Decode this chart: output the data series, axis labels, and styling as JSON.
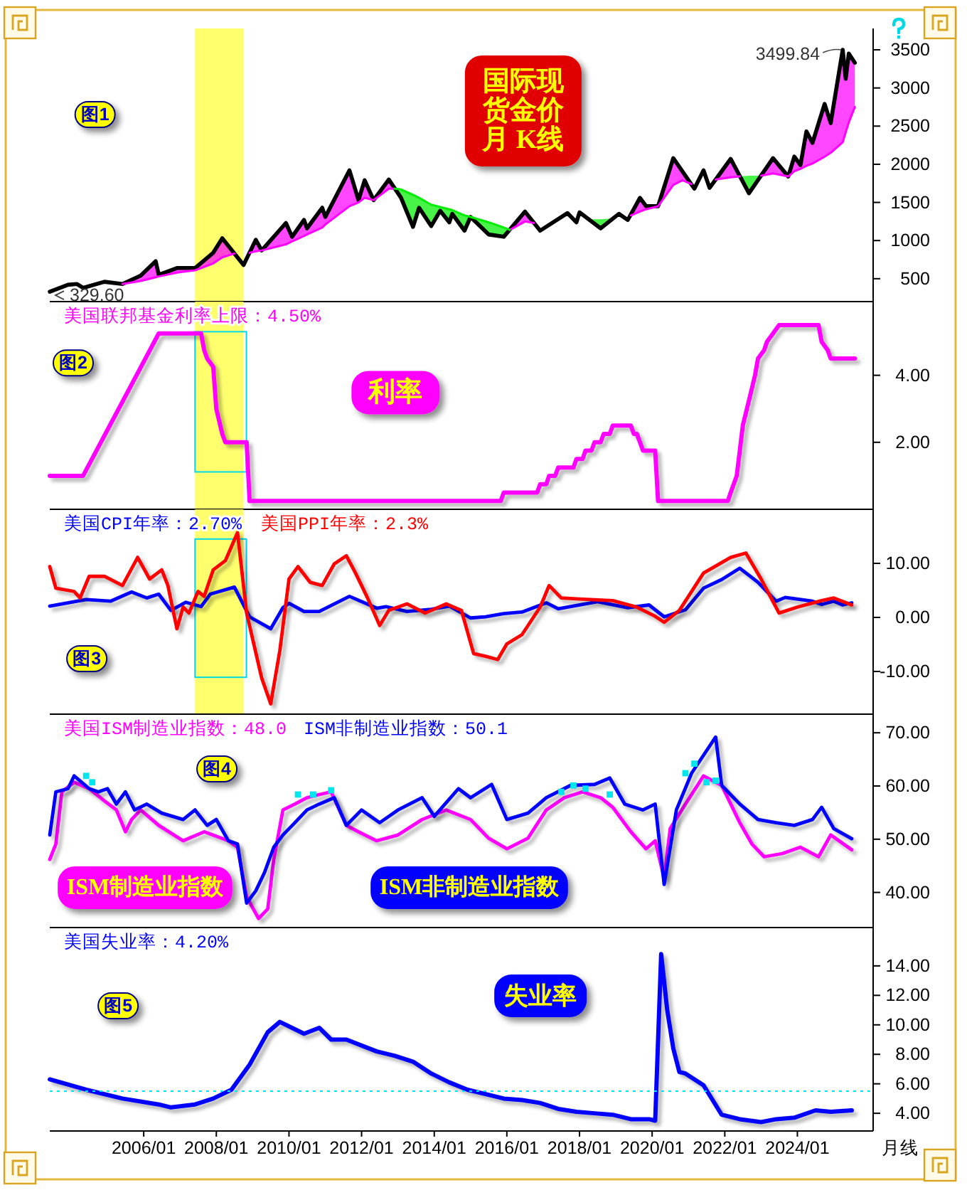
{
  "chart_data": [
    {
      "type": "line",
      "title": "国际现货金价月 K线",
      "annotations": [
        "图1",
        {
          "text": "3499.84",
          "x": "2025-04",
          "y": 3499.84
        },
        {
          "text": "329.60",
          "x": "2003-06",
          "y": 329.6
        }
      ],
      "xlim": [
        "2003-06",
        "2026-02"
      ],
      "ylim": [
        200,
        3780
      ],
      "yticks": [
        500,
        1000,
        1500,
        2000,
        2500,
        3000,
        3500
      ],
      "tick_labels": "y",
      "bands": [
        {
          "axis": "x",
          "from": "2007-06",
          "to": "2008-10",
          "color": "#ffff55"
        }
      ],
      "series": [
        {
          "color": "#000000",
          "x": [
            "2003-06",
            "2003-12",
            "2004-03",
            "2004-05",
            "2004-12",
            "2005-06",
            "2005-12",
            "2006-05",
            "2006-06",
            "2006-12",
            "2007-06",
            "2007-12",
            "2008-03",
            "2008-10",
            "2009-02",
            "2009-04",
            "2009-12",
            "2010-02",
            "2010-06",
            "2010-07",
            "2010-12",
            "2011-01",
            "2011-09",
            "2011-12",
            "2012-02",
            "2012-05",
            "2012-10",
            "2013-02",
            "2013-06",
            "2013-08",
            "2013-12",
            "2014-03",
            "2014-06",
            "2014-07",
            "2014-11",
            "2015-01",
            "2015-07",
            "2015-12",
            "2016-07",
            "2016-12",
            "2017-09",
            "2017-12",
            "2018-01",
            "2018-08",
            "2019-02",
            "2019-05",
            "2019-09",
            "2019-11",
            "2020-03",
            "2020-08",
            "2021-03",
            "2021-06",
            "2021-08",
            "2022-03",
            "2022-09",
            "2023-05",
            "2023-10",
            "2023-12",
            "2024-02",
            "2024-04",
            "2024-06",
            "2024-10",
            "2024-12",
            "2025-04",
            "2025-05",
            "2025-06",
            "2025-08"
          ],
          "values": [
            329.6,
            420,
            430,
            380,
            460,
            430,
            540,
            730,
            550,
            640,
            640,
            840,
            1030,
            680,
            1010,
            870,
            1230,
            1050,
            1270,
            1160,
            1430,
            1310,
            1920,
            1530,
            1790,
            1530,
            1800,
            1560,
            1180,
            1430,
            1190,
            1390,
            1240,
            1350,
            1130,
            1310,
            1080,
            1050,
            1380,
            1130,
            1360,
            1240,
            1370,
            1160,
            1350,
            1270,
            1560,
            1450,
            1450,
            2080,
            1680,
            1920,
            1690,
            2070,
            1620,
            2080,
            1840,
            2100,
            1990,
            2430,
            2280,
            2790,
            2540,
            3499.84,
            3120,
            3450,
            3330
          ]
        },
        {
          "color": "#ff00ff",
          "x": [
            "2005-06",
            "2005-12",
            "2006-05",
            "2006-06",
            "2006-12",
            "2007-06",
            "2007-12",
            "2008-03",
            "2008-07",
            "2008-09",
            "2008-12",
            "2009-02",
            "2009-04",
            "2009-12",
            "2010-02",
            "2010-06",
            "2010-07",
            "2010-12",
            "2011-01",
            "2011-09",
            "2011-12",
            "2012-02",
            "2012-05",
            "2012-10",
            "2012-12",
            "2014-06",
            "2016-02",
            "2016-07",
            "2016-10",
            "2017-12",
            "2019-06",
            "2019-09",
            "2019-11",
            "2020-03",
            "2020-08",
            "2020-11",
            "2021-02",
            "2021-06",
            "2021-10",
            "2022-03",
            "2022-06",
            "2022-09",
            "2023-01",
            "2023-05",
            "2023-10",
            "2023-12",
            "2024-02",
            "2024-04",
            "2024-06",
            "2024-10",
            "2024-12",
            "2025-04",
            "2025-05",
            "2025-06",
            "2025-08"
          ],
          "values": [
            430,
            470,
            520,
            530,
            580,
            610,
            700,
            780,
            830,
            null,
            840,
            860,
            870,
            950,
            990,
            1060,
            1080,
            1170,
            1210,
            1450,
            1500,
            1560,
            1530,
            1680,
            1680,
            null,
            1140,
            1250,
            1230,
            null,
            1330,
            1380,
            1410,
            1450,
            1730,
            1790,
            1740,
            null,
            1800,
            1830,
            1840,
            null,
            1850,
            1880,
            1840,
            1910,
            1940,
            1980,
            2010,
            2100,
            2150,
            2290,
            2420,
            2550,
            2750
          ],
          "lower": [
            430,
            470,
            520,
            530,
            580,
            610,
            700,
            780,
            830,
            null,
            840,
            860,
            870,
            950,
            990,
            1060,
            1080,
            1170,
            1210,
            1450,
            1500,
            1560,
            1530,
            1680,
            1680,
            null,
            1140,
            1250,
            1230,
            null,
            1330,
            1380,
            1410,
            1450,
            1730,
            1790,
            1740,
            null,
            1800,
            1830,
            1840,
            null,
            1850,
            1880,
            1840,
            1910,
            1940,
            1980,
            2010,
            2100,
            2150,
            2290,
            2420,
            2550,
            2750
          ],
          "upper": [
            430,
            540,
            730,
            550,
            640,
            640,
            840,
            1030,
            830,
            null,
            840,
            1010,
            870,
            1230,
            1050,
            1270,
            1160,
            1430,
            1310,
            1920,
            1530,
            1790,
            1530,
            1800,
            1680,
            null,
            1140,
            1380,
            1230,
            null,
            1340,
            1560,
            1450,
            1450,
            2080,
            1910,
            1740,
            null,
            1800,
            2070,
            1840,
            null,
            1850,
            2080,
            1840,
            2100,
            1990,
            2430,
            2280,
            2790,
            2540,
            3499.84,
            3120,
            3450,
            3330
          ]
        },
        {
          "color": "#00ee00",
          "x": [
            "2012-12",
            "2013-02",
            "2013-06",
            "2013-08",
            "2013-12",
            "2014-03",
            "2014-06",
            "2014-07",
            "2014-11",
            "2015-01",
            "2015-07",
            "2015-12",
            "2016-02",
            "2017-01",
            "2018-04",
            "2018-08",
            "2018-12",
            "2020-01",
            "2022-06",
            "2022-09",
            "2023-01"
          ],
          "values": [
            1680,
            1670,
            1600,
            1560,
            1470,
            1440,
            1410,
            1400,
            1330,
            1310,
            1240,
            1170,
            1140,
            null,
            null,
            null,
            null,
            null,
            null,
            null,
            null
          ],
          "lower": [
            1680,
            1560,
            1180,
            1430,
            1190,
            1390,
            1240,
            1350,
            1130,
            1310,
            1080,
            1050,
            1140,
            null,
            1280,
            1160,
            1290,
            null,
            1840,
            1620,
            1850
          ],
          "upper": [
            1680,
            1670,
            1600,
            1560,
            1470,
            1440,
            1410,
            1400,
            1330,
            1310,
            1240,
            1170,
            1140,
            null,
            1280,
            1280,
            1290,
            null,
            1840,
            1850,
            1850
          ]
        }
      ]
    },
    {
      "type": "line",
      "title": "利率",
      "annotations": [
        "图2"
      ],
      "legend": "top left",
      "xlim": [
        "2003-06",
        "2026-02"
      ],
      "ylim": [
        0,
        6.2
      ],
      "yticks": [
        {
          "value": 2,
          "label": "2.00"
        },
        {
          "value": 4,
          "label": "4.00"
        }
      ],
      "tick_labels": "y",
      "bands": [
        {
          "axis": "x",
          "from": "2007-06",
          "to": "2008-10",
          "color": "#ffff55"
        }
      ],
      "series": [
        {
          "name": "美国联邦基金利率上限：4.50%",
          "color": "#ff00ff",
          "x": [
            "2003-06",
            "2004-05",
            "2006-06",
            "2007-08",
            "2007-09",
            "2007-10",
            "2007-12",
            "2008-01",
            "2008-03",
            "2008-04",
            "2008-11",
            "2008-12",
            "2015-11",
            "2015-12",
            "2016-11",
            "2016-12",
            "2017-02",
            "2017-03",
            "2017-05",
            "2017-06",
            "2017-11",
            "2017-12",
            "2018-02",
            "2018-03",
            "2018-05",
            "2018-06",
            "2018-08",
            "2018-09",
            "2018-11",
            "2018-12",
            "2019-06",
            "2019-07",
            "2019-08",
            "2019-09",
            "2019-10",
            "2020-02",
            "2020-03",
            "2022-02",
            "2022-03",
            "2022-05",
            "2022-06",
            "2022-07",
            "2022-09",
            "2022-11",
            "2022-12",
            "2023-02",
            "2023-03",
            "2023-05",
            "2023-07",
            "2024-08",
            "2024-09",
            "2024-11",
            "2024-12",
            "2025-08"
          ],
          "values": [
            1,
            1,
            5.25,
            5.25,
            4.75,
            4.5,
            4.25,
            3,
            2.25,
            2,
            2,
            0.25,
            0.25,
            0.5,
            0.5,
            0.75,
            0.75,
            1,
            1,
            1.25,
            1.25,
            1.5,
            1.5,
            1.75,
            1.75,
            2,
            2,
            2.25,
            2.25,
            2.5,
            2.5,
            2.25,
            2.25,
            2,
            1.75,
            1.75,
            0.25,
            0.25,
            0.5,
            1,
            1.75,
            2.5,
            3.25,
            4,
            4.5,
            4.75,
            5,
            5.25,
            5.5,
            5.5,
            5,
            4.75,
            4.5,
            4.5
          ]
        }
      ]
    },
    {
      "type": "line",
      "annotations": [
        "图3"
      ],
      "legend": "top left",
      "xlim": [
        "2003-06",
        "2026-02"
      ],
      "ylim": [
        -17.9,
        20
      ],
      "yticks": [
        {
          "value": -10,
          "label": "-10.00"
        },
        {
          "value": 0,
          "label": "0.00"
        },
        {
          "value": 10,
          "label": "10.00"
        }
      ],
      "tick_labels": "y",
      "bands": [
        {
          "axis": "x",
          "from": "2007-06",
          "to": "2008-10",
          "color": "#ffff55"
        }
      ],
      "series": [
        {
          "name": "美国CPI年率：2.70%",
          "color": "#0000ff",
          "x": [
            "2003-06",
            "2004-06",
            "2005-02",
            "2005-09",
            "2006-02",
            "2006-06",
            "2006-10",
            "2007-03",
            "2007-08",
            "2007-11",
            "2008-07",
            "2008-12",
            "2009-07",
            "2009-11",
            "2010-01",
            "2010-06",
            "2010-11",
            "2011-09",
            "2012-06",
            "2012-09",
            "2013-04",
            "2013-12",
            "2014-06",
            "2015-01",
            "2015-06",
            "2015-12",
            "2016-06",
            "2017-02",
            "2017-06",
            "2018-07",
            "2019-05",
            "2019-12",
            "2020-05",
            "2020-12",
            "2021-06",
            "2021-12",
            "2022-06",
            "2022-12",
            "2023-06",
            "2023-09",
            "2024-06",
            "2024-09",
            "2025-01",
            "2025-04",
            "2025-07"
          ],
          "values": [
            2.1,
            3.3,
            3.0,
            4.7,
            3.6,
            4.3,
            1.3,
            2.8,
            2.0,
            4.3,
            5.6,
            0.1,
            -2.1,
            1.8,
            2.6,
            1.1,
            1.1,
            3.9,
            1.7,
            2.0,
            1.1,
            1.5,
            2.1,
            -0.1,
            0.1,
            0.7,
            1.0,
            2.7,
            1.6,
            2.9,
            1.8,
            2.3,
            0.1,
            1.4,
            5.4,
            7.0,
            9.1,
            6.5,
            3.0,
            3.7,
            3.0,
            2.4,
            3.0,
            2.3,
            2.7
          ]
        },
        {
          "name": "美国PPI年率：2.3%",
          "color": "#ff0000",
          "x": [
            "2003-06",
            "2003-08",
            "2004-02",
            "2004-04",
            "2004-07",
            "2004-12",
            "2005-06",
            "2005-11",
            "2006-03",
            "2006-07",
            "2006-09",
            "2006-12",
            "2007-02",
            "2007-04",
            "2007-07",
            "2007-09",
            "2007-12",
            "2008-04",
            "2008-08",
            "2008-11",
            "2009-04",
            "2009-07",
            "2009-10",
            "2010-01",
            "2010-04",
            "2010-08",
            "2010-12",
            "2011-04",
            "2011-08",
            "2011-11",
            "2012-03",
            "2012-07",
            "2012-10",
            "2013-04",
            "2013-10",
            "2014-05",
            "2014-10",
            "2015-02",
            "2015-06",
            "2015-10",
            "2016-01",
            "2016-06",
            "2016-12",
            "2017-03",
            "2017-07",
            "2018-01",
            "2018-12",
            "2019-08",
            "2020-02",
            "2020-05",
            "2020-10",
            "2021-06",
            "2022-03",
            "2022-08",
            "2023-01",
            "2023-07",
            "2024-01",
            "2024-09",
            "2025-01",
            "2025-07"
          ],
          "values": [
            9.4,
            5.4,
            4.8,
            3.6,
            7.6,
            7.6,
            5.9,
            11.1,
            7.1,
            8.8,
            5.9,
            -2.1,
            1.9,
            0.8,
            4.8,
            3.9,
            8.8,
            10.5,
            15.7,
            0.8,
            -11.2,
            -16,
            -6.1,
            7.1,
            9.4,
            6.5,
            5.9,
            9.9,
            11.4,
            8.2,
            3.6,
            -1.5,
            1.3,
            2.5,
            0.8,
            2.5,
            1.3,
            -6.7,
            -7.2,
            -7.8,
            -4.9,
            -3.2,
            1.9,
            5.9,
            3.6,
            3.4,
            3.1,
            1.9,
            0.2,
            -0.9,
            1.3,
            8.2,
            11.1,
            11.9,
            7.1,
            0.8,
            1.9,
            3.1,
            3.6,
            2.3
          ]
        }
      ]
    },
    {
      "type": "line",
      "annotations": [
        "图4",
        "ISM制造业指数",
        "ISM非制造业指数"
      ],
      "legend": "top left",
      "xlim": [
        "2003-06",
        "2026-02"
      ],
      "ylim": [
        33.4,
        73.5
      ],
      "yticks": [
        {
          "value": 40,
          "label": "40.00"
        },
        {
          "value": 50,
          "label": "50.00"
        },
        {
          "value": 60,
          "label": "60.00"
        },
        {
          "value": 70,
          "label": "70.00"
        }
      ],
      "tick_labels": "y",
      "series": [
        {
          "name": "美国ISM制造业指数：48.0",
          "color": "#ff00ff",
          "x": [
            "2003-06",
            "2003-08",
            "2003-10",
            "2004-02",
            "2004-07",
            "2004-12",
            "2005-04",
            "2005-07",
            "2005-09",
            "2005-12",
            "2006-06",
            "2007-02",
            "2007-09",
            "2008-05",
            "2008-08",
            "2008-11",
            "2009-03",
            "2009-06",
            "2009-08",
            "2009-11",
            "2010-03",
            "2010-07",
            "2010-11",
            "2011-03",
            "2011-08",
            "2011-12",
            "2012-06",
            "2013-01",
            "2013-09",
            "2014-05",
            "2015-01",
            "2015-07",
            "2016-01",
            "2016-08",
            "2017-02",
            "2017-08",
            "2018-02",
            "2018-08",
            "2018-12",
            "2019-06",
            "2019-11",
            "2020-02",
            "2020-05",
            "2020-07",
            "2020-12",
            "2021-06",
            "2021-12",
            "2022-06",
            "2022-10",
            "2023-02",
            "2023-08",
            "2024-02",
            "2024-08",
            "2024-12",
            "2025-07"
          ],
          "values": [
            46.2,
            49.1,
            58.9,
            60.7,
            59.5,
            57.2,
            55.5,
            51.4,
            53.7,
            55.5,
            52.6,
            49.7,
            51.4,
            49.7,
            48.5,
            39.2,
            35.1,
            36.9,
            46.2,
            55.5,
            56.6,
            57.8,
            58.4,
            58.9,
            52.6,
            51.4,
            49.7,
            50.8,
            53.7,
            55.5,
            53.7,
            50.2,
            48.2,
            50.2,
            55.5,
            57.8,
            58.9,
            57.8,
            56.0,
            51.4,
            48.2,
            49.7,
            42.7,
            52.0,
            56.6,
            61.9,
            60.1,
            53.1,
            49.1,
            46.7,
            47.3,
            48.5,
            46.7,
            50.8,
            48.0
          ]
        },
        {
          "name": "ISM非制造业指数：50.1",
          "color": "#0000ff",
          "x": [
            "2003-06",
            "2003-08",
            "2003-12",
            "2004-02",
            "2004-07",
            "2004-10",
            "2005-01",
            "2005-04",
            "2005-07",
            "2005-10",
            "2006-02",
            "2006-07",
            "2007-02",
            "2007-06",
            "2007-10",
            "2008-01",
            "2008-05",
            "2008-08",
            "2008-11",
            "2009-02",
            "2009-05",
            "2009-08",
            "2009-11",
            "2010-03",
            "2010-07",
            "2010-11",
            "2011-04",
            "2011-08",
            "2012-01",
            "2012-07",
            "2013-01",
            "2013-09",
            "2014-01",
            "2014-09",
            "2015-01",
            "2015-08",
            "2016-01",
            "2016-08",
            "2017-02",
            "2017-10",
            "2018-06",
            "2018-11",
            "2019-04",
            "2019-10",
            "2020-02",
            "2020-05",
            "2020-09",
            "2021-02",
            "2021-10",
            "2021-12",
            "2022-06",
            "2022-12",
            "2023-06",
            "2023-12",
            "2024-06",
            "2024-09",
            "2025-01",
            "2025-07"
          ],
          "values": [
            50.8,
            58.9,
            59.5,
            61.9,
            59.5,
            58.9,
            59.5,
            56.6,
            58.9,
            55.5,
            56.6,
            54.9,
            53.7,
            55.5,
            52.6,
            53.7,
            49.7,
            49.1,
            38.0,
            40.3,
            43.8,
            48.5,
            50.8,
            53.1,
            55.5,
            56.6,
            57.8,
            52.6,
            55.5,
            53.1,
            55.5,
            57.8,
            54.3,
            59.5,
            57.8,
            60.3,
            53.7,
            54.9,
            57.8,
            60.1,
            60.3,
            61.5,
            56.6,
            55.5,
            56.6,
            41.5,
            55.5,
            62.4,
            69.2,
            60.1,
            56.6,
            53.7,
            53.1,
            52.6,
            53.7,
            56.0,
            52.0,
            50.1
          ]
        },
        {
          "type": "scatter",
          "marker": "square",
          "color": "#00e5ee",
          "x": [
            "2004-06",
            "2004-08",
            "2010-04",
            "2010-09",
            "2011-03",
            "2017-07",
            "2017-11",
            "2018-03",
            "2018-11",
            "2020-12",
            "2021-03",
            "2021-07",
            "2021-10"
          ],
          "values": [
            61.9,
            60.7,
            58.4,
            58.4,
            59.2,
            58.9,
            60.1,
            59.5,
            58.4,
            62.4,
            64.2,
            60.7,
            61.0
          ]
        }
      ]
    },
    {
      "type": "line",
      "title": "失业率",
      "annotations": [
        "图5"
      ],
      "legend": "top left",
      "xlabel": "月线",
      "xlim": [
        "2003-06",
        "2026-02"
      ],
      "ylim": [
        2.8,
        16.6
      ],
      "yticks": [
        {
          "value": 4,
          "label": "4.00"
        },
        {
          "value": 6,
          "label": "6.00"
        },
        {
          "value": 8,
          "label": "8.00"
        },
        {
          "value": 10,
          "label": "10.00"
        },
        {
          "value": 12,
          "label": "12.00"
        },
        {
          "value": 14,
          "label": "14.00"
        }
      ],
      "xticks": [
        {
          "value": "2006-01",
          "label": "2006/01"
        },
        {
          "value": "2008-01",
          "label": "2008/01"
        },
        {
          "value": "2010-01",
          "label": "2010/01"
        },
        {
          "value": "2012-01",
          "label": "2012/01"
        },
        {
          "value": "2014-01",
          "label": "2014/01"
        },
        {
          "value": "2016-01",
          "label": "2016/01"
        },
        {
          "value": "2018-01",
          "label": "2018/01"
        },
        {
          "value": "2020-01",
          "label": "2020/01"
        },
        {
          "value": "2022-01",
          "label": "2022/01"
        },
        {
          "value": "2024-01",
          "label": "2024/01"
        }
      ],
      "ref_lines": [
        {
          "axis": "y",
          "value": 5.5,
          "color": "#00e5ee",
          "line_style": "dotted"
        }
      ],
      "series": [
        {
          "name": "美国失业率：4.20%",
          "color": "#0000ff",
          "x": [
            "2003-06",
            "2004-06",
            "2005-06",
            "2006-06",
            "2006-10",
            "2007-06",
            "2007-12",
            "2008-06",
            "2008-12",
            "2009-06",
            "2009-10",
            "2010-06",
            "2010-11",
            "2011-03",
            "2011-08",
            "2012-06",
            "2012-12",
            "2013-06",
            "2013-12",
            "2014-06",
            "2014-12",
            "2015-06",
            "2015-12",
            "2016-06",
            "2016-12",
            "2017-06",
            "2017-12",
            "2018-06",
            "2018-12",
            "2019-06",
            "2019-12",
            "2020-02",
            "2020-04",
            "2020-06",
            "2020-08",
            "2020-10",
            "2020-12",
            "2021-06",
            "2021-12",
            "2022-06",
            "2023-01",
            "2023-06",
            "2023-12",
            "2024-07",
            "2024-12",
            "2025-07"
          ],
          "values": [
            6.3,
            5.6,
            5.0,
            4.6,
            4.4,
            4.6,
            5.0,
            5.6,
            7.3,
            9.5,
            10.2,
            9.4,
            9.8,
            9.0,
            9.0,
            8.2,
            7.9,
            7.5,
            6.7,
            6.1,
            5.6,
            5.3,
            5.0,
            4.9,
            4.7,
            4.3,
            4.1,
            4.0,
            3.9,
            3.6,
            3.6,
            3.5,
            14.8,
            11.0,
            8.4,
            6.8,
            6.7,
            5.9,
            3.9,
            3.6,
            3.4,
            3.6,
            3.7,
            4.2,
            4.1,
            4.2
          ]
        }
      ]
    }
  ]
}
